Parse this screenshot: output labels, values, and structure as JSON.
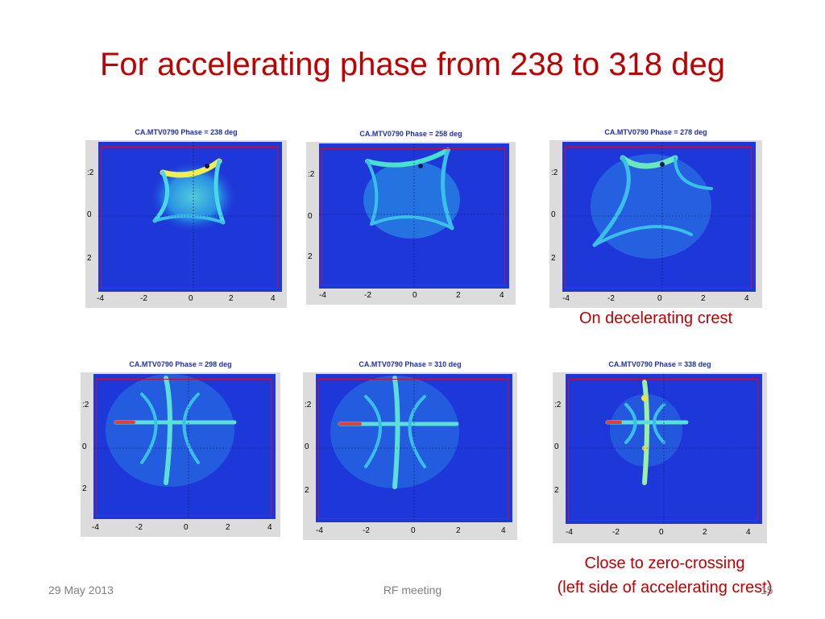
{
  "slide": {
    "title": "For accelerating phase from 238 to 318 deg",
    "footer_date": "29 May 2013",
    "footer_center": "RF meeting",
    "footer_page": "15"
  },
  "panels": [
    {
      "title": "CA.MTV0790 Phase = 238 deg"
    },
    {
      "title": "CA.MTV0790 Phase = 258 deg"
    },
    {
      "title": "CA.MTV0790 Phase = 278 deg"
    },
    {
      "title": "CA.MTV0790 Phase = 298 deg"
    },
    {
      "title": "CA.MTV0790 Phase = 310 deg"
    },
    {
      "title": "CA.MTV0790 Phase = 338 deg"
    }
  ],
  "x_ticks": [
    "-4",
    "-2",
    "0",
    "2",
    "4"
  ],
  "y_ticks": [
    ":2",
    "0",
    "2"
  ],
  "captions": {
    "decelerating": "On decelerating crest",
    "zero_crossing_line1": "Close to zero-crossing",
    "zero_crossing_line2": "(left side of accelerating crest)"
  },
  "colors": {
    "title": "#c00000",
    "frame": "#c8102e",
    "plot_bg": "#1e37d8"
  }
}
